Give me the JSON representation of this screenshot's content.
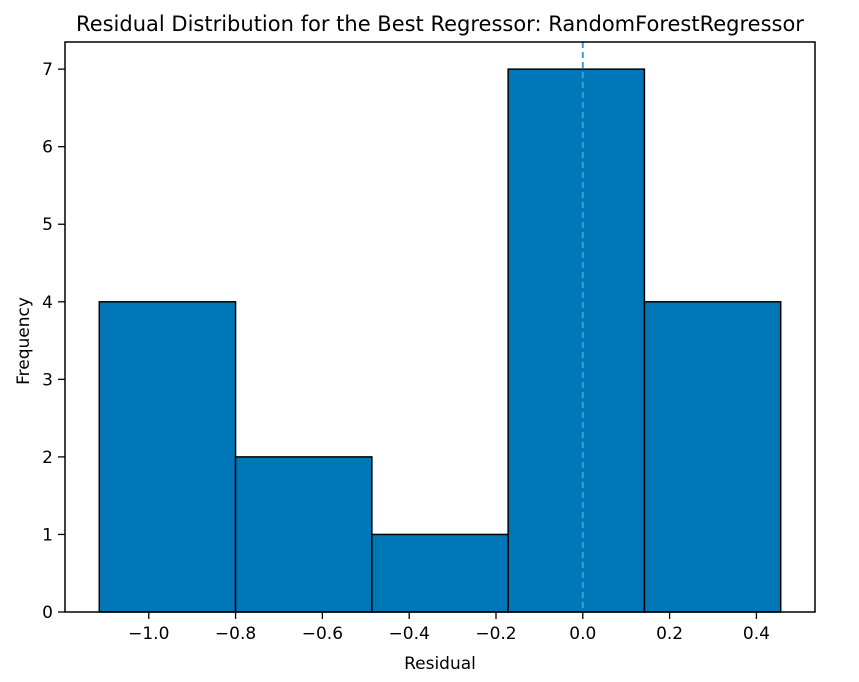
{
  "chart_data": {
    "type": "bar",
    "title": "Residual Distribution for the Best Regressor: RandomForestRegressor",
    "xlabel": "Residual",
    "ylabel": "Frequency",
    "bin_edges": [
      -1.114,
      -0.8,
      -0.486,
      -0.172,
      0.142,
      0.456
    ],
    "values": [
      4,
      2,
      1,
      7,
      4
    ],
    "xlim": [
      -1.193,
      0.535
    ],
    "ylim": [
      0,
      7.35
    ],
    "xticks": [
      -1.0,
      -0.8,
      -0.6,
      -0.4,
      -0.2,
      0.0,
      0.2,
      0.4
    ],
    "xtick_labels": [
      "−1.0",
      "−0.8",
      "−0.6",
      "−0.4",
      "−0.2",
      "0.0",
      "0.2",
      "0.4"
    ],
    "yticks": [
      0,
      1,
      2,
      3,
      4,
      5,
      6,
      7
    ],
    "ytick_labels": [
      "0",
      "1",
      "2",
      "3",
      "4",
      "5",
      "6",
      "7"
    ],
    "reference_line": {
      "x": 0.0,
      "style": "dashed"
    },
    "grid": false,
    "colors": {
      "bar_fill": "#0077b6",
      "bar_edge": "#000000",
      "reference_line": "#3aa0d8"
    }
  }
}
